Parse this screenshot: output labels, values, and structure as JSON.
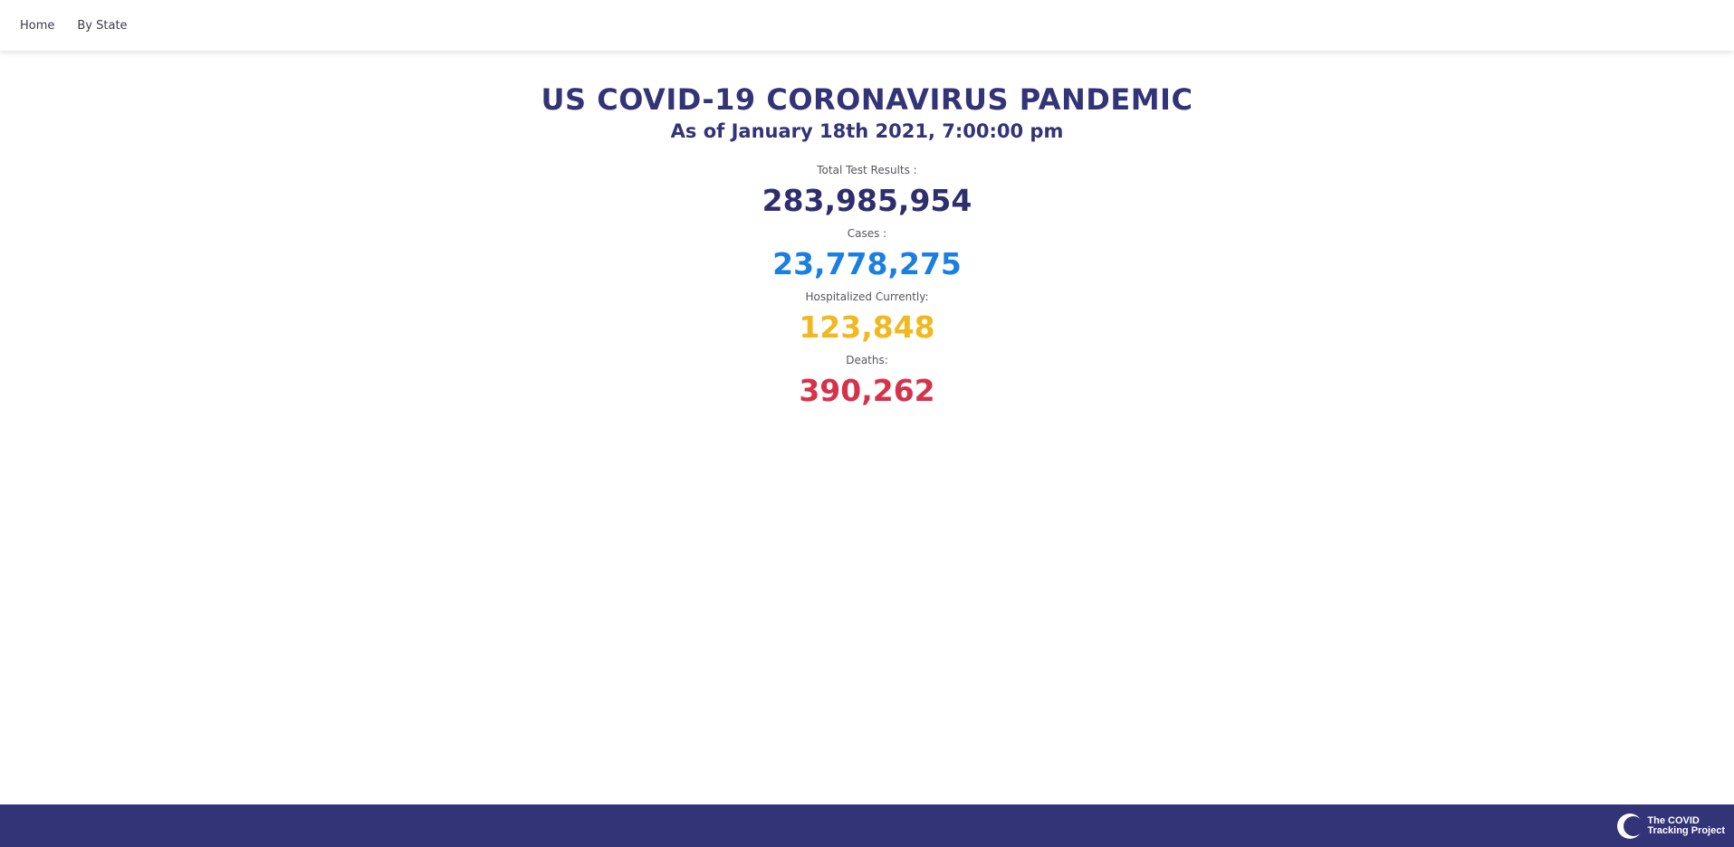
{
  "nav": {
    "home_label": "Home",
    "by_state_label": "By State"
  },
  "header": {
    "title": "US COVID-19 CORONAVIRUS PANDEMIC",
    "subtitle": "As of January 18th 2021, 7:00:00 pm"
  },
  "stats": [
    {
      "label": "Total Test Results :",
      "value": "283,985,954",
      "color": "#2e2e6e"
    },
    {
      "label": "Cases :",
      "value": "23,778,275",
      "color": "#1a7fe0"
    },
    {
      "label": "Hospitalized Currently:",
      "value": "123,848",
      "color": "#f2b820"
    },
    {
      "label": "Deaths:",
      "value": "390,262",
      "color": "#d6324a"
    }
  ],
  "footer": {
    "logo_line1": "The COVID",
    "logo_line2": "Tracking Project",
    "background_color": "#333378"
  }
}
